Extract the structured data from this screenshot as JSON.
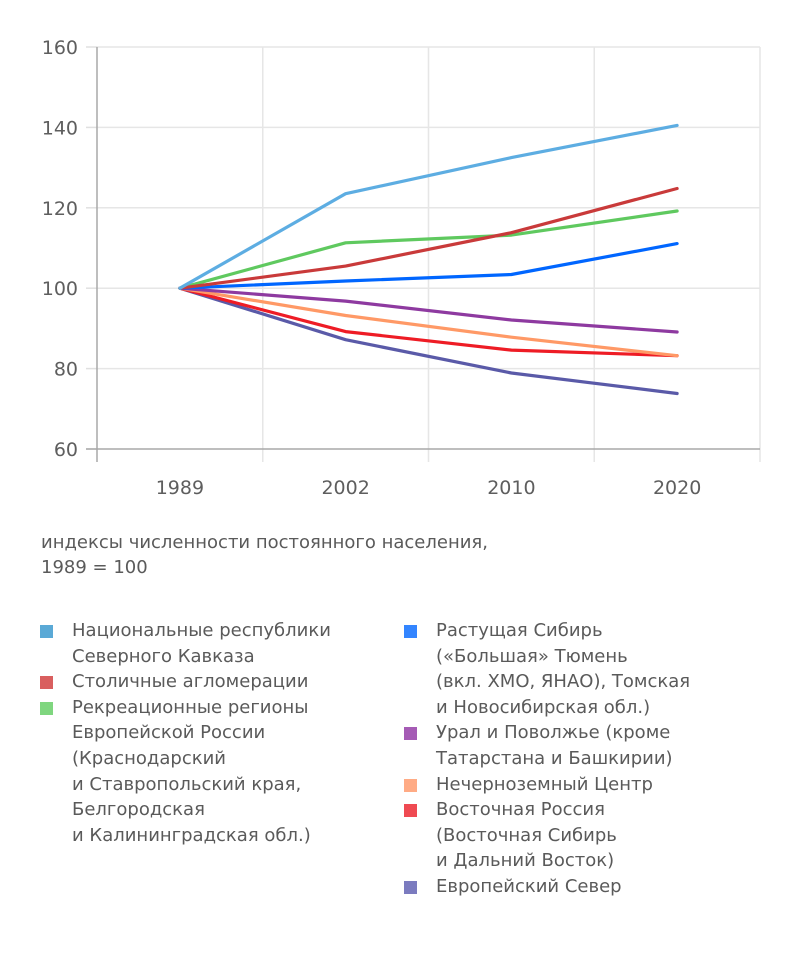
{
  "chart_data": {
    "type": "line",
    "title": "",
    "xlabel": "",
    "ylabel": "",
    "categories": [
      "1989",
      "2002",
      "2010",
      "2020"
    ],
    "ylim": [
      60,
      160
    ],
    "yticks": [
      60,
      80,
      100,
      120,
      140,
      160
    ],
    "grid": true,
    "legend_position": "bottom",
    "caption": [
      "индексы численности постоянного населения,",
      "1989 = 100"
    ],
    "series": [
      {
        "name": "Национальные республики Северного Кавказа",
        "color": "#5dade2",
        "swatch": "#5aa9d6",
        "values": [
          100,
          123.5,
          132.5,
          140.5
        ]
      },
      {
        "name": "Столичные агломерации",
        "color": "#c93a3a",
        "swatch": "#d95f5f",
        "values": [
          100,
          105.5,
          113.8,
          124.8
        ]
      },
      {
        "name": "Рекреационные регионы Европейской России (Краснодарский и Ставропольский края, Белгородская и Калининградская обл.)",
        "color": "#5fc95f",
        "swatch": "#7fd67f",
        "values": [
          100,
          111.3,
          113.2,
          119.2
        ]
      },
      {
        "name": "Растущая Сибирь («Большая» Тюмень (вкл. ХМО, ЯНАО), Томская и Новосибирская обл.)",
        "color": "#0066ff",
        "swatch": "#3385ff",
        "values": [
          100,
          101.8,
          103.4,
          111.1
        ]
      },
      {
        "name": "Урал и Поволжье (кроме Татарстана и Башкирии)",
        "color": "#8e3aa0",
        "swatch": "#a55bb5",
        "values": [
          100,
          96.8,
          92.1,
          89.1
        ]
      },
      {
        "name": "Нечерноземный Центр",
        "color": "#ff9966",
        "swatch": "#ffab85",
        "values": [
          100,
          93.2,
          87.8,
          83.2
        ]
      },
      {
        "name": "Восточная Россия (Восточная Сибирь и Дальний Восток)",
        "color": "#ee1c25",
        "swatch": "#ef4a52",
        "values": [
          100,
          89.2,
          84.6,
          83.2
        ]
      },
      {
        "name": "Европейский Север",
        "color": "#5a5aa8",
        "swatch": "#7b7bbf",
        "values": [
          100,
          87.2,
          78.9,
          73.8
        ]
      }
    ]
  },
  "legend": {
    "left": [
      {
        "series": 0,
        "lines": [
          "Национальные республики",
          "Северного Кавказа"
        ]
      },
      {
        "series": 1,
        "lines": [
          "Столичные агломерации"
        ]
      },
      {
        "series": 2,
        "lines": [
          "Рекреационные регионы",
          "Европейской России",
          "(Краснодарский",
          "и Ставропольский края,",
          "Белгородская",
          "и Калининградская обл.)"
        ]
      }
    ],
    "right": [
      {
        "series": 3,
        "lines": [
          "Растущая Сибирь",
          "(«Большая» Тюмень",
          "(вкл. ХМО, ЯНАО), Томская",
          "и Новосибирская обл.)"
        ]
      },
      {
        "series": 4,
        "lines": [
          "Урал и Поволжье (кроме",
          "Татарстана и Башкирии)"
        ]
      },
      {
        "series": 5,
        "lines": [
          "Нечерноземный Центр"
        ]
      },
      {
        "series": 6,
        "lines": [
          "Восточная Россия",
          "(Восточная Сибирь",
          "и Дальний Восток)"
        ]
      },
      {
        "series": 7,
        "lines": [
          "Европейский Север"
        ]
      }
    ]
  }
}
